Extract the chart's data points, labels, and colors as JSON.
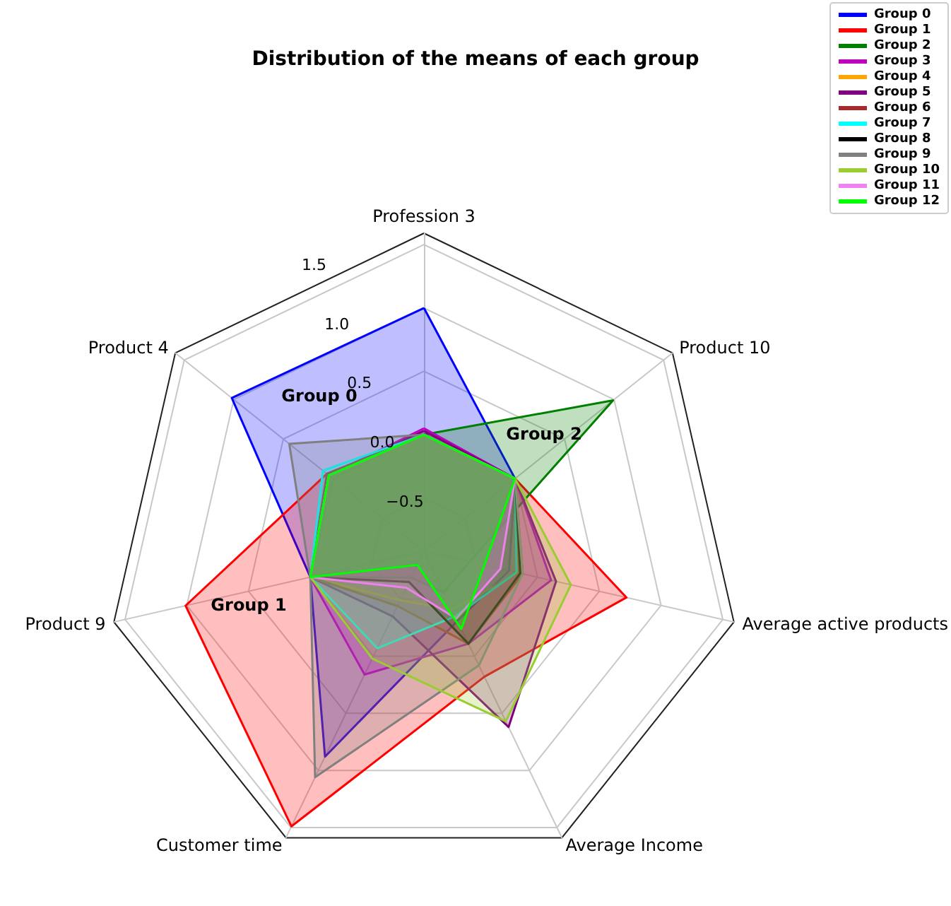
{
  "chart_data": {
    "type": "radar",
    "title": "Distribution of the means of each group",
    "categories": [
      "Profession 3",
      "Product 10",
      "Average active products",
      "Average Income",
      "Customer time",
      "Product 9",
      "Product 4"
    ],
    "ylim": [
      -0.92,
      1.59
    ],
    "yticks": [
      {
        "value": -0.5,
        "label": "−0.5"
      },
      {
        "value": 0,
        "label": "0.0"
      },
      {
        "value": 0.5,
        "label": "0.5"
      },
      {
        "value": 1,
        "label": "1.0"
      },
      {
        "value": 1.5,
        "label": "1.5"
      }
    ],
    "grid": true,
    "legend": "top right",
    "marker": "none",
    "line_style": "solid",
    "annotations": [
      "Group 0",
      "Group 1",
      "Group 2"
    ],
    "series": [
      {
        "name": "Group 0",
        "color": "#0000ff",
        "values": [
          1.0,
          0.0,
          -0.23,
          -0.31,
          0.88,
          0.0,
          1.02
        ]
      },
      {
        "name": "Group 1",
        "color": "#ff0000",
        "values": [
          0.0,
          0.0,
          0.72,
          0.18,
          1.49,
          1.01,
          0.06
        ]
      },
      {
        "name": "Group 2",
        "color": "#008000",
        "values": [
          0.0,
          0.99,
          -0.55,
          -0.56,
          -0.69,
          0.0,
          0.04
        ]
      },
      {
        "name": "Group 3",
        "color": "#bf00bf",
        "values": [
          0.05,
          0.0,
          0.11,
          -0.11,
          0.16,
          0.0,
          0.04
        ]
      },
      {
        "name": "Group 4",
        "color": "#ffa500",
        "values": [
          0.0,
          0.0,
          -0.15,
          -0.41,
          -0.49,
          0.0,
          0.05
        ]
      },
      {
        "name": "Group 5",
        "color": "#800080",
        "values": [
          0.03,
          0.0,
          0.15,
          0.62,
          -0.35,
          0.0,
          0.04
        ]
      },
      {
        "name": "Group 6",
        "color": "#a52a2a",
        "values": [
          0.0,
          0.0,
          -0.12,
          -0.11,
          -0.44,
          0.0,
          0.06
        ]
      },
      {
        "name": "Group 7",
        "color": "#00ffff",
        "values": [
          0.0,
          0.0,
          -0.17,
          -0.35,
          -0.07,
          0.0,
          0.1
        ]
      },
      {
        "name": "Group 8",
        "color": "#000000",
        "values": [
          0.0,
          0.0,
          -0.14,
          -0.11,
          -0.65,
          0.0,
          0.04
        ]
      },
      {
        "name": "Group 9",
        "color": "#808080",
        "values": [
          0.0,
          0.0,
          -0.12,
          0.08,
          1.06,
          0.0,
          0.44
        ]
      },
      {
        "name": "Group 10",
        "color": "#9acd32",
        "values": [
          0.0,
          0.0,
          0.27,
          0.57,
          0.02,
          0.0,
          0.04
        ]
      },
      {
        "name": "Group 11",
        "color": "#ee82ee",
        "values": [
          0.0,
          0.0,
          -0.3,
          -0.33,
          -0.6,
          0.0,
          0.04
        ]
      },
      {
        "name": "Group 12",
        "color": "#00ff00",
        "values": [
          0.0,
          0.0,
          -0.43,
          -0.24,
          -0.8,
          0.0,
          0.04
        ]
      }
    ]
  }
}
